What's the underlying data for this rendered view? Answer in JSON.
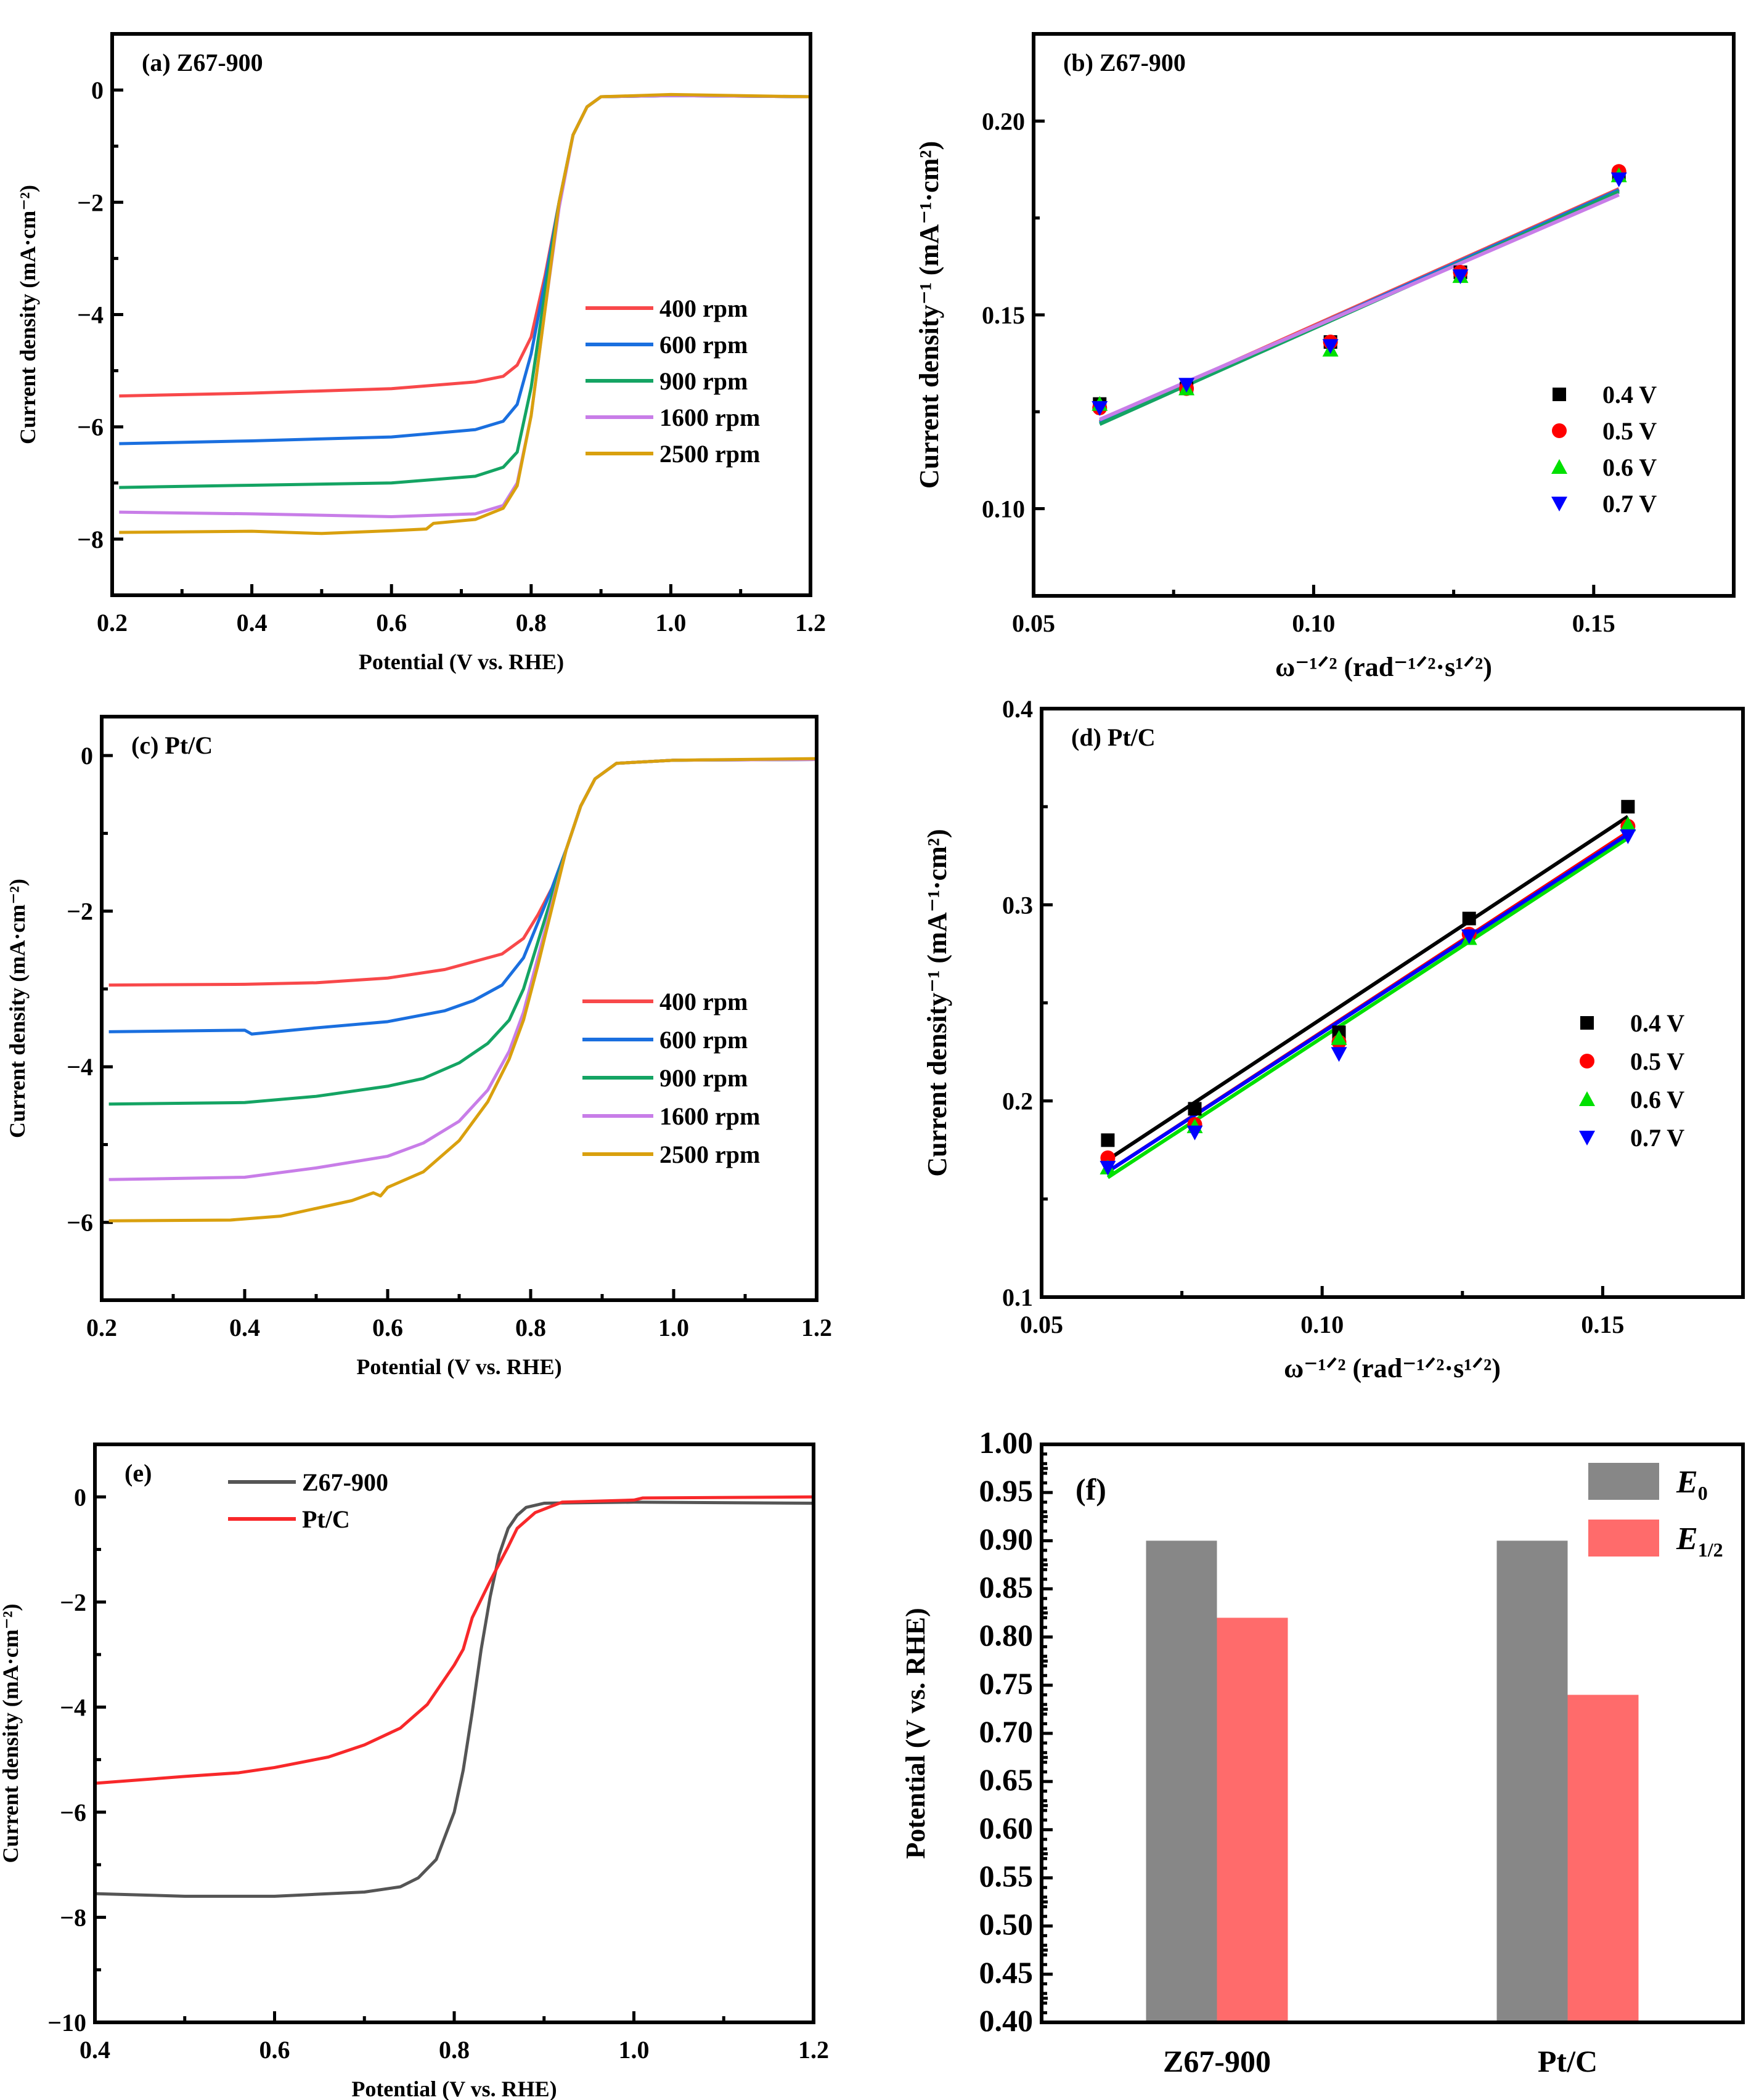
{
  "figure": {
    "background": "#ffffff"
  },
  "chart_data": [
    {
      "id": "a",
      "type": "line",
      "panel_label": "(a)  Z67-900",
      "xlabel": "Potential   (V vs. RHE)",
      "ylabel": "Current density   (mA·cm⁻²)",
      "xlim": [
        0.2,
        1.2
      ],
      "ylim": [
        -9,
        1
      ],
      "xticks": [
        0.2,
        0.4,
        0.6,
        0.8,
        1.0,
        1.2
      ],
      "xtick_labels": [
        "0.2",
        "0.4",
        "0.6",
        "0.8",
        "1.0",
        "1.2"
      ],
      "yticks": [
        0,
        -2,
        -4,
        -6,
        -8
      ],
      "ytick_labels": [
        "0",
        "−2",
        "−4",
        "−6",
        "−8"
      ],
      "legend_position": "center-right",
      "series": [
        {
          "name": "400 rpm",
          "color": "#f8484a",
          "x": [
            0.21,
            0.4,
            0.6,
            0.72,
            0.76,
            0.78,
            0.8,
            0.82,
            0.84,
            0.86,
            0.88,
            0.9,
            1.0,
            1.2
          ],
          "y": [
            -5.45,
            -5.4,
            -5.32,
            -5.2,
            -5.1,
            -4.9,
            -4.4,
            -3.3,
            -2.0,
            -0.8,
            -0.3,
            -0.12,
            -0.1,
            -0.12
          ]
        },
        {
          "name": "600 rpm",
          "color": "#1a6fdf",
          "x": [
            0.21,
            0.4,
            0.6,
            0.72,
            0.76,
            0.78,
            0.8,
            0.82,
            0.84,
            0.86,
            0.88,
            0.9,
            1.0,
            1.2
          ],
          "y": [
            -6.3,
            -6.25,
            -6.18,
            -6.05,
            -5.9,
            -5.6,
            -4.7,
            -3.4,
            -2.0,
            -0.8,
            -0.3,
            -0.12,
            -0.1,
            -0.12
          ]
        },
        {
          "name": "900 rpm",
          "color": "#14a463",
          "x": [
            0.21,
            0.4,
            0.6,
            0.72,
            0.76,
            0.78,
            0.8,
            0.82,
            0.84,
            0.86,
            0.88,
            0.9,
            1.0,
            1.2
          ],
          "y": [
            -7.08,
            -7.04,
            -7.0,
            -6.88,
            -6.72,
            -6.45,
            -5.3,
            -3.6,
            -2.0,
            -0.8,
            -0.3,
            -0.12,
            -0.1,
            -0.12
          ]
        },
        {
          "name": "1600 rpm",
          "color": "#c87de8",
          "x": [
            0.21,
            0.4,
            0.6,
            0.72,
            0.76,
            0.78,
            0.8,
            0.82,
            0.84,
            0.86,
            0.88,
            0.9,
            1.0,
            1.2
          ],
          "y": [
            -7.52,
            -7.55,
            -7.6,
            -7.55,
            -7.4,
            -7.0,
            -5.8,
            -3.9,
            -2.1,
            -0.8,
            -0.3,
            -0.12,
            -0.1,
            -0.12
          ]
        },
        {
          "name": "2500 rpm",
          "color": "#d9a00e",
          "x": [
            0.21,
            0.4,
            0.5,
            0.6,
            0.65,
            0.66,
            0.72,
            0.76,
            0.78,
            0.8,
            0.82,
            0.84,
            0.86,
            0.88,
            0.9,
            1.0,
            1.2
          ],
          "y": [
            -7.88,
            -7.86,
            -7.9,
            -7.85,
            -7.82,
            -7.72,
            -7.65,
            -7.45,
            -7.05,
            -5.8,
            -3.9,
            -2.0,
            -0.8,
            -0.3,
            -0.12,
            -0.08,
            -0.12
          ]
        }
      ]
    },
    {
      "id": "b",
      "type": "scatter",
      "panel_label": "(b) Z67-900",
      "xlabel": "ω⁻¹ᐟ²  (rad⁻¹ᐟ²·s¹ᐟ²)",
      "ylabel": "Current density⁻¹ (mA⁻¹·cm²)",
      "xlim": [
        0.05,
        0.175
      ],
      "ylim": [
        0.0775,
        0.2225
      ],
      "xticks": [
        0.05,
        0.1,
        0.15
      ],
      "xtick_labels": [
        "0.05",
        "0.10",
        "0.15"
      ],
      "yticks": [
        0.1,
        0.15,
        0.2
      ],
      "ytick_labels": [
        "0.10",
        "0.15",
        "0.20"
      ],
      "legend_position": "center-right",
      "x": [
        0.0618,
        0.0773,
        0.103,
        0.1262,
        0.1545
      ],
      "series": [
        {
          "name": "0.4 V",
          "marker": "square",
          "color": "#000000",
          "line_color": "#f8484a",
          "y": [
            0.127,
            0.131,
            0.143,
            0.161,
            0.186
          ],
          "fit": [
            0.1225,
            0.1825
          ]
        },
        {
          "name": "0.5 V",
          "marker": "circle",
          "color": "#ff0000",
          "line_color": "#1a6fdf",
          "y": [
            0.126,
            0.131,
            0.143,
            0.161,
            0.187
          ],
          "fit": [
            0.1222,
            0.1822
          ]
        },
        {
          "name": "0.6 V",
          "marker": "triangle-up",
          "color": "#00e000",
          "line_color": "#14a463",
          "y": [
            0.127,
            0.131,
            0.141,
            0.16,
            0.186
          ],
          "fit": [
            0.1218,
            0.1818
          ]
        },
        {
          "name": "0.7 V",
          "marker": "triangle-down",
          "color": "#0000ff",
          "line_color": "#c87de8",
          "y": [
            0.126,
            0.132,
            0.142,
            0.16,
            0.185
          ],
          "fit": [
            0.123,
            0.181
          ]
        }
      ]
    },
    {
      "id": "c",
      "type": "line",
      "panel_label": "(c)  Pt/C",
      "xlabel": "Potential  (V vs. RHE)",
      "ylabel": "Current density   (mA·cm⁻²)",
      "xlim": [
        0.2,
        1.2
      ],
      "ylim": [
        -7,
        0.5
      ],
      "xticks": [
        0.2,
        0.4,
        0.6,
        0.8,
        1.0,
        1.2
      ],
      "xtick_labels": [
        "0.2",
        "0.4",
        "0.6",
        "0.8",
        "1.0",
        "1.2"
      ],
      "yticks": [
        0,
        -2,
        -4,
        -6
      ],
      "ytick_labels": [
        "0",
        "−2",
        "−4",
        "−6"
      ],
      "legend_position": "center-right",
      "series": [
        {
          "name": "400 rpm",
          "color": "#f8484a",
          "x": [
            0.21,
            0.4,
            0.5,
            0.6,
            0.68,
            0.72,
            0.76,
            0.79,
            0.81,
            0.83,
            0.85,
            0.87,
            0.89,
            0.92,
            1.0,
            1.2
          ],
          "y": [
            -2.95,
            -2.94,
            -2.92,
            -2.86,
            -2.75,
            -2.65,
            -2.55,
            -2.35,
            -2.05,
            -1.7,
            -1.2,
            -0.65,
            -0.3,
            -0.1,
            -0.06,
            -0.05
          ]
        },
        {
          "name": "600 rpm",
          "color": "#1a6fdf",
          "x": [
            0.21,
            0.4,
            0.41,
            0.5,
            0.6,
            0.68,
            0.72,
            0.76,
            0.79,
            0.81,
            0.83,
            0.85,
            0.87,
            0.89,
            0.92,
            1.0,
            1.2
          ],
          "y": [
            -3.55,
            -3.53,
            -3.58,
            -3.5,
            -3.42,
            -3.28,
            -3.15,
            -2.95,
            -2.6,
            -2.15,
            -1.7,
            -1.2,
            -0.65,
            -0.3,
            -0.1,
            -0.06,
            -0.05
          ]
        },
        {
          "name": "900 rpm",
          "color": "#14a463",
          "x": [
            0.21,
            0.4,
            0.5,
            0.6,
            0.65,
            0.7,
            0.74,
            0.77,
            0.79,
            0.81,
            0.83,
            0.85,
            0.87,
            0.89,
            0.92,
            1.0,
            1.2
          ],
          "y": [
            -4.48,
            -4.46,
            -4.38,
            -4.25,
            -4.15,
            -3.95,
            -3.7,
            -3.4,
            -3.0,
            -2.4,
            -1.8,
            -1.2,
            -0.65,
            -0.3,
            -0.1,
            -0.06,
            -0.05
          ]
        },
        {
          "name": "1600 rpm",
          "color": "#c87de8",
          "x": [
            0.21,
            0.4,
            0.5,
            0.6,
            0.65,
            0.7,
            0.74,
            0.77,
            0.79,
            0.81,
            0.83,
            0.85,
            0.87,
            0.89,
            0.92,
            1.0,
            1.2
          ],
          "y": [
            -5.45,
            -5.42,
            -5.3,
            -5.15,
            -4.98,
            -4.7,
            -4.3,
            -3.8,
            -3.3,
            -2.6,
            -1.9,
            -1.2,
            -0.65,
            -0.3,
            -0.1,
            -0.06,
            -0.05
          ]
        },
        {
          "name": "2500 rpm",
          "color": "#d9a00e",
          "x": [
            0.21,
            0.38,
            0.45,
            0.5,
            0.55,
            0.58,
            0.59,
            0.6,
            0.65,
            0.7,
            0.74,
            0.77,
            0.79,
            0.81,
            0.83,
            0.85,
            0.87,
            0.89,
            0.92,
            1.0,
            1.2
          ],
          "y": [
            -5.98,
            -5.97,
            -5.92,
            -5.82,
            -5.72,
            -5.62,
            -5.66,
            -5.55,
            -5.35,
            -4.95,
            -4.45,
            -3.9,
            -3.4,
            -2.7,
            -1.95,
            -1.2,
            -0.65,
            -0.3,
            -0.1,
            -0.06,
            -0.04
          ]
        }
      ]
    },
    {
      "id": "d",
      "type": "scatter",
      "panel_label": "(d)  Pt/C",
      "xlabel": "ω⁻¹ᐟ² (rad⁻¹ᐟ²·s¹ᐟ²)",
      "ylabel": "Current density⁻¹  (mA⁻¹·cm²)",
      "xlim": [
        0.05,
        0.175
      ],
      "ylim": [
        0.1,
        0.4
      ],
      "xticks": [
        0.05,
        0.1,
        0.15
      ],
      "xtick_labels": [
        "0.05",
        "0.10",
        "0.15"
      ],
      "yticks": [
        0.1,
        0.2,
        0.3,
        0.4
      ],
      "ytick_labels": [
        "0.1",
        "0.2",
        "0.3",
        "0.4"
      ],
      "legend_position": "center-right",
      "x": [
        0.0618,
        0.0773,
        0.103,
        0.1262,
        0.1545
      ],
      "series": [
        {
          "name": "0.4 V",
          "marker": "square",
          "color": "#000000",
          "line_color": "#000000",
          "y": [
            0.18,
            0.196,
            0.235,
            0.293,
            0.35
          ],
          "fit": [
            0.17,
            0.345
          ]
        },
        {
          "name": "0.5 V",
          "marker": "circle",
          "color": "#ff0000",
          "line_color": "#ff0000",
          "y": [
            0.171,
            0.188,
            0.23,
            0.285,
            0.34
          ],
          "fit": [
            0.164,
            0.337
          ]
        },
        {
          "name": "0.6 V",
          "marker": "triangle-up",
          "color": "#00e000",
          "line_color": "#00e000",
          "y": [
            0.166,
            0.187,
            0.232,
            0.283,
            0.341
          ],
          "fit": [
            0.161,
            0.334
          ]
        },
        {
          "name": "0.7 V",
          "marker": "triangle-down",
          "color": "#0000ff",
          "line_color": "#0000ff",
          "y": [
            0.166,
            0.184,
            0.224,
            0.284,
            0.335
          ],
          "fit": [
            0.164,
            0.336
          ]
        }
      ]
    },
    {
      "id": "e",
      "type": "line",
      "panel_label": "(e)",
      "xlabel": "Potential  (V vs. RHE)",
      "ylabel": "Current density  (mA·cm⁻²)",
      "xlim": [
        0.4,
        1.2
      ],
      "ylim": [
        -10,
        1
      ],
      "xticks": [
        0.4,
        0.6,
        0.8,
        1.0,
        1.2
      ],
      "xtick_labels": [
        "0.4",
        "0.6",
        "0.8",
        "1.0",
        "1.2"
      ],
      "yticks": [
        0,
        -2,
        -4,
        -6,
        -8,
        -10
      ],
      "ytick_labels": [
        "0",
        "−2",
        "−4",
        "−6",
        "−8",
        "−10"
      ],
      "legend_position": "top-left",
      "series": [
        {
          "name": "Z67-900",
          "color": "#555555",
          "x": [
            0.4,
            0.5,
            0.6,
            0.7,
            0.74,
            0.76,
            0.78,
            0.8,
            0.81,
            0.82,
            0.83,
            0.84,
            0.85,
            0.86,
            0.87,
            0.88,
            0.9,
            1.0,
            1.2
          ],
          "y": [
            -7.55,
            -7.6,
            -7.6,
            -7.52,
            -7.42,
            -7.25,
            -6.9,
            -6.0,
            -5.2,
            -4.1,
            -2.9,
            -1.9,
            -1.1,
            -0.6,
            -0.35,
            -0.2,
            -0.12,
            -0.1,
            -0.12
          ]
        },
        {
          "name": "Pt/C",
          "color": "#f8282a",
          "x": [
            0.4,
            0.5,
            0.56,
            0.6,
            0.66,
            0.7,
            0.74,
            0.77,
            0.8,
            0.81,
            0.82,
            0.84,
            0.86,
            0.87,
            0.89,
            0.92,
            1.0,
            1.01,
            1.2
          ],
          "y": [
            -5.45,
            -5.32,
            -5.25,
            -5.15,
            -4.95,
            -4.72,
            -4.4,
            -3.95,
            -3.2,
            -2.9,
            -2.3,
            -1.6,
            -0.95,
            -0.6,
            -0.3,
            -0.1,
            -0.06,
            -0.02,
            0.0
          ]
        }
      ]
    },
    {
      "id": "f",
      "type": "bar",
      "panel_label": "(f)",
      "xlabel": "",
      "ylabel": "Potential  (V vs. RHE)",
      "categories": [
        "Z67-900",
        "Pt/C"
      ],
      "ylim": [
        0.4,
        1.0
      ],
      "yticks": [
        0.4,
        0.45,
        0.5,
        0.55,
        0.6,
        0.65,
        0.7,
        0.75,
        0.8,
        0.85,
        0.9,
        0.95,
        1.0
      ],
      "ytick_labels": [
        "0.40",
        "0.45",
        "0.50",
        "0.55",
        "0.60",
        "0.65",
        "0.70",
        "0.75",
        "0.80",
        "0.85",
        "0.90",
        "0.95",
        "1.00"
      ],
      "legend_position": "top-right",
      "series": [
        {
          "name": "E",
          "sub": "0",
          "color": "#878787",
          "values": [
            0.9,
            0.9
          ]
        },
        {
          "name": "E",
          "sub": "1/2",
          "color": "#ff6b6b",
          "values": [
            0.82,
            0.74
          ]
        }
      ]
    }
  ]
}
